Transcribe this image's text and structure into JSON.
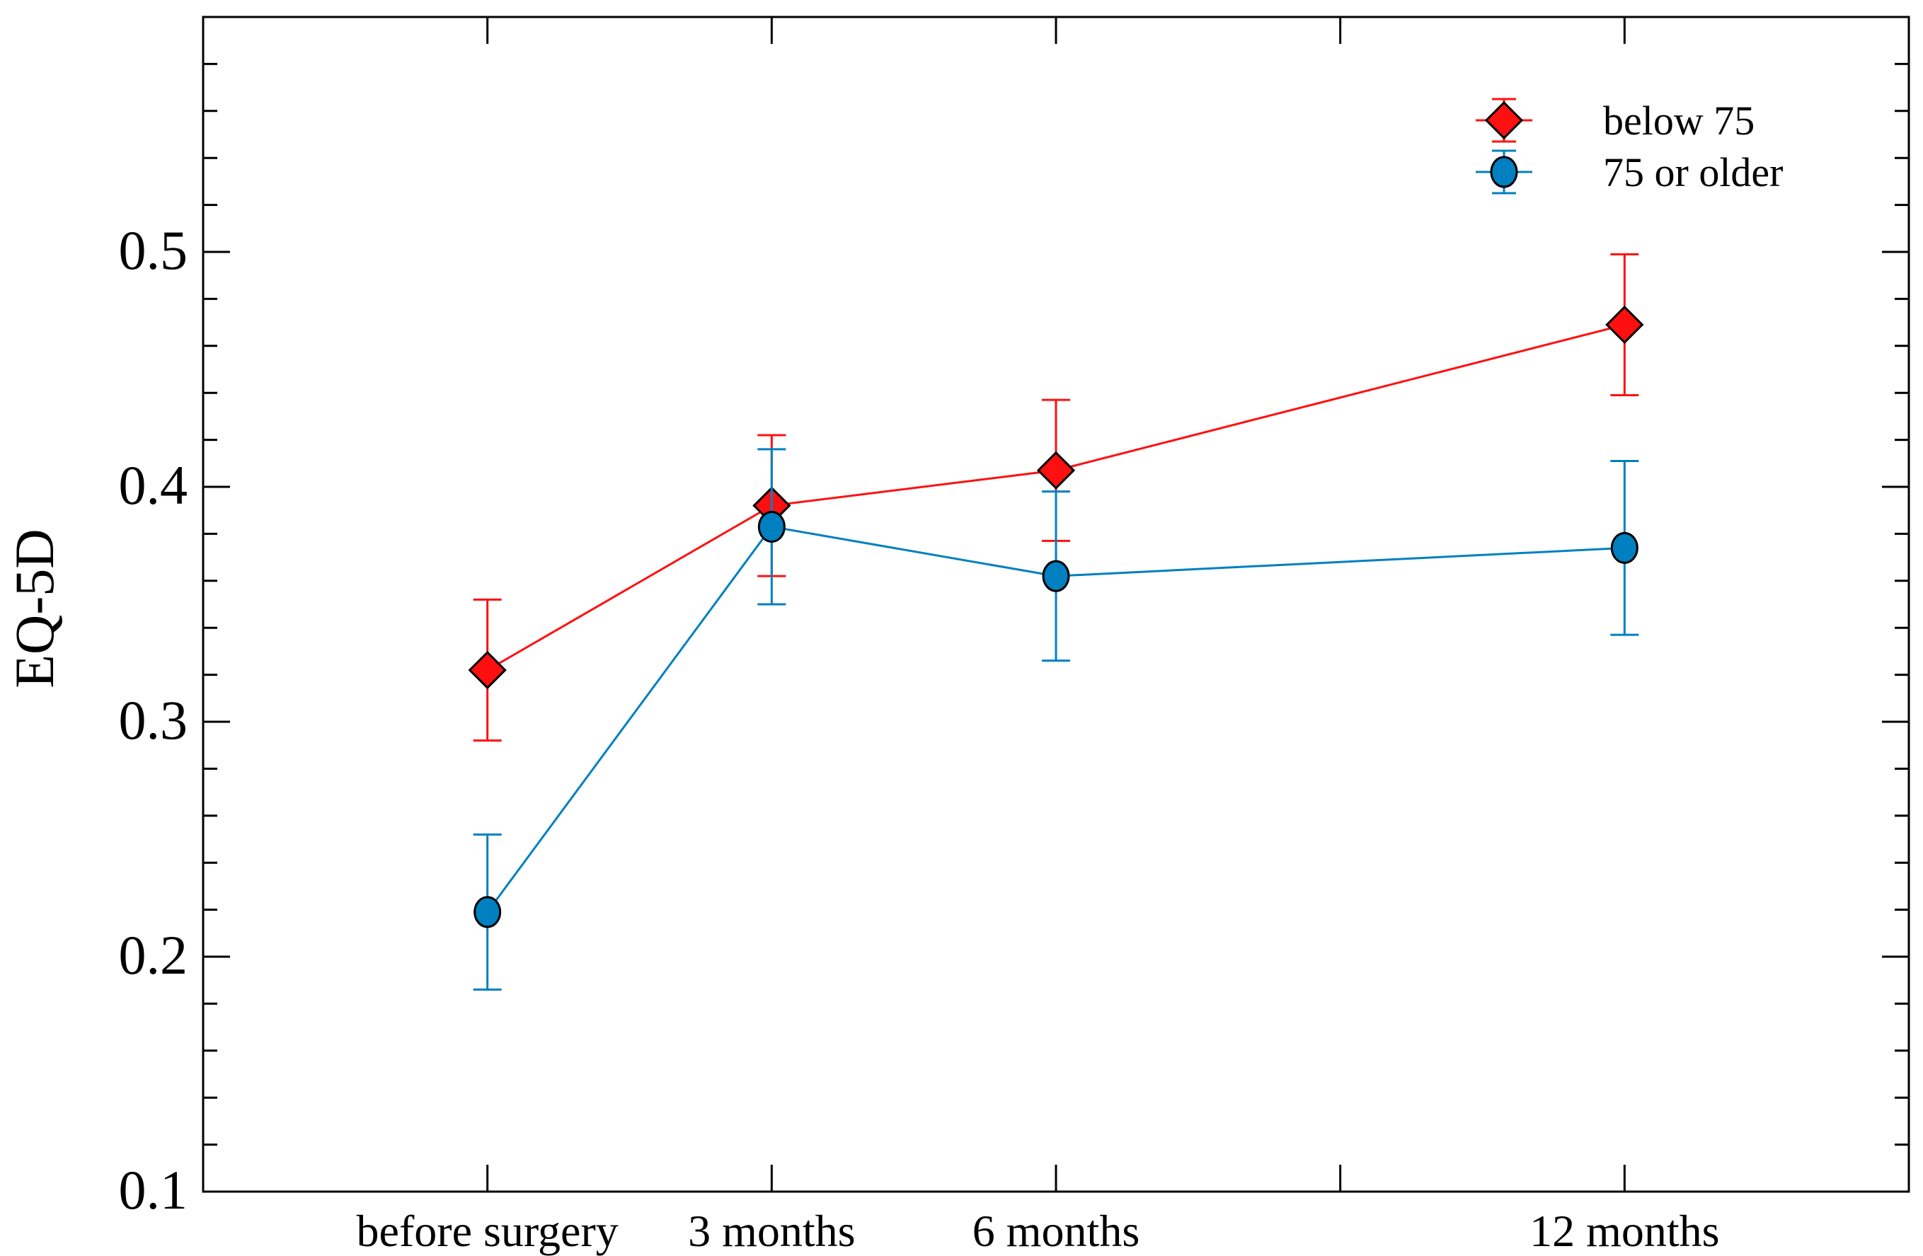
{
  "chart_data": {
    "type": "line",
    "title": "",
    "xlabel": "",
    "ylabel": "EQ-5D",
    "x": [
      1,
      2,
      3,
      5
    ],
    "categories": [
      "before surgery",
      "3 months",
      "6 months",
      "12 months"
    ],
    "xlim": [
      0,
      6
    ],
    "xticks_major": [
      1,
      2,
      3,
      4,
      5
    ],
    "ylim": [
      0.1,
      0.6
    ],
    "yticks": [
      0.1,
      0.2,
      0.3,
      0.4,
      0.5
    ],
    "ytick_labels": [
      "0.1",
      "0.2",
      "0.3",
      "0.4",
      "0.5"
    ],
    "yminor_step": 0.02,
    "grid": false,
    "legend_position": "top-right",
    "series": [
      {
        "name": "below 75",
        "color": "#ff1010",
        "marker": "diamond",
        "values": [
          0.322,
          0.392,
          0.407,
          0.469
        ],
        "err_low": [
          0.292,
          0.362,
          0.377,
          0.439
        ],
        "err_high": [
          0.352,
          0.422,
          0.437,
          0.499
        ]
      },
      {
        "name": "75 or older",
        "color": "#0080c0",
        "marker": "circle",
        "values": [
          0.219,
          0.383,
          0.362,
          0.374
        ],
        "err_low": [
          0.186,
          0.35,
          0.326,
          0.337
        ],
        "err_high": [
          0.252,
          0.416,
          0.398,
          0.411
        ]
      }
    ]
  }
}
